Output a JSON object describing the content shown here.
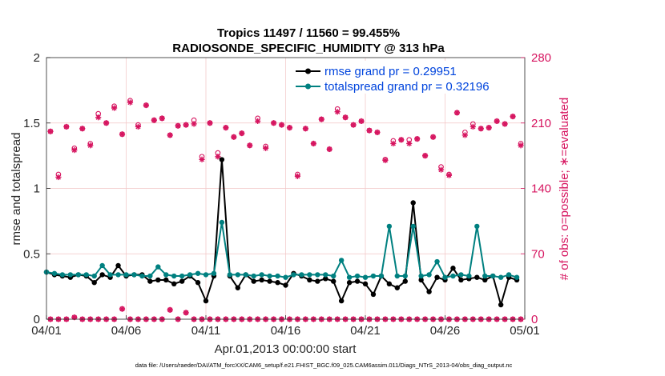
{
  "chart_data": {
    "type": "line",
    "title_line1": "Tropics 11497 / 11560 = 99.455%",
    "title_line2": "RADIOSONDE_SPECIFIC_HUMIDITY @ 313 hPa",
    "xlabel": "Apr.01,2013 00:00:00 start",
    "ylabel_left": "rmse and totalspread",
    "ylabel_right": "# of obs: o=possible; ∗=evaluated",
    "footer": "data file: /Users/raeder/DAI/ATM_forcXX/CAM6_setup/f.e21.FHIST_BGC.f09_025.CAM6assim.011/Diags_NTrS_2013-04/obs_diag_output.nc",
    "xlim": [
      0,
      30
    ],
    "ylim_left": [
      0,
      2
    ],
    "ylim_right": [
      0,
      280
    ],
    "x_tick_labels": [
      "04/01",
      "04/06",
      "04/11",
      "04/16",
      "04/21",
      "04/26",
      "05/01"
    ],
    "x_tick_values": [
      0,
      5,
      10,
      15,
      20,
      25,
      30
    ],
    "y_left_tick_labels": [
      "0",
      "0.5",
      "1",
      "1.5",
      "2"
    ],
    "y_left_tick_values": [
      0,
      0.5,
      1,
      1.5,
      2
    ],
    "y_right_tick_labels": [
      "0",
      "70",
      "140",
      "210",
      "280"
    ],
    "y_right_tick_values": [
      0,
      70,
      140,
      210,
      280
    ],
    "colors": {
      "rmse": "#000000",
      "spread": "#008080",
      "obs": "#d6145f",
      "rmse_legend_text": "#0044dd",
      "spread_legend_text": "#0044dd",
      "grid": "#f2c4c4"
    },
    "legend": [
      {
        "name": "rmse grand pr = 0.29951",
        "key": "rmse"
      },
      {
        "name": "totalspread grand pr = 0.32196",
        "key": "spread"
      }
    ],
    "series": [
      {
        "name": "rmse",
        "x": [
          0,
          0.5,
          1,
          1.5,
          2,
          2.5,
          3,
          3.5,
          4,
          4.5,
          5,
          5.5,
          6,
          6.5,
          7,
          7.5,
          8,
          8.5,
          9,
          9.5,
          10,
          10.5,
          11,
          11.5,
          12,
          12.5,
          13,
          13.5,
          14,
          14.5,
          15,
          15.5,
          16,
          16.5,
          17,
          17.5,
          18,
          18.5,
          19,
          19.5,
          20,
          20.5,
          21,
          21.5,
          22,
          22.5,
          23,
          23.5,
          24,
          24.5,
          25,
          25.5,
          26,
          26.5,
          27,
          27.5,
          28,
          28.5,
          29,
          29.5
        ],
        "values": [
          0.36,
          0.34,
          0.33,
          0.32,
          0.34,
          0.33,
          0.28,
          0.34,
          0.32,
          0.41,
          0.33,
          0.34,
          0.34,
          0.29,
          0.3,
          0.3,
          0.27,
          0.29,
          0.33,
          0.28,
          0.14,
          0.33,
          1.22,
          0.33,
          0.24,
          0.34,
          0.29,
          0.3,
          0.29,
          0.28,
          0.26,
          0.35,
          0.33,
          0.3,
          0.29,
          0.31,
          0.29,
          0.14,
          0.28,
          0.29,
          0.27,
          0.19,
          0.33,
          0.27,
          0.24,
          0.29,
          0.89,
          0.3,
          0.21,
          0.32,
          0.3,
          0.39,
          0.3,
          0.31,
          0.32,
          0.3,
          0.33,
          0.11,
          0.32,
          0.3
        ]
      },
      {
        "name": "totalspread",
        "x": [
          0,
          0.5,
          1,
          1.5,
          2,
          2.5,
          3,
          3.5,
          4,
          4.5,
          5,
          5.5,
          6,
          6.5,
          7,
          7.5,
          8,
          8.5,
          9,
          9.5,
          10,
          10.5,
          11,
          11.5,
          12,
          12.5,
          13,
          13.5,
          14,
          14.5,
          15,
          15.5,
          16,
          16.5,
          17,
          17.5,
          18,
          18.5,
          19,
          19.5,
          20,
          20.5,
          21,
          21.5,
          22,
          22.5,
          23,
          23.5,
          24,
          24.5,
          25,
          25.5,
          26,
          26.5,
          27,
          27.5,
          28,
          28.5,
          29,
          29.5
        ],
        "values": [
          0.36,
          0.35,
          0.34,
          0.34,
          0.34,
          0.34,
          0.33,
          0.41,
          0.34,
          0.34,
          0.34,
          0.34,
          0.33,
          0.33,
          0.4,
          0.34,
          0.33,
          0.33,
          0.34,
          0.35,
          0.34,
          0.35,
          0.74,
          0.34,
          0.34,
          0.34,
          0.33,
          0.34,
          0.33,
          0.33,
          0.32,
          0.34,
          0.34,
          0.34,
          0.34,
          0.34,
          0.33,
          0.45,
          0.32,
          0.33,
          0.32,
          0.33,
          0.33,
          0.71,
          0.33,
          0.33,
          0.71,
          0.33,
          0.34,
          0.44,
          0.32,
          0.33,
          0.34,
          0.33,
          0.71,
          0.33,
          0.33,
          0.32,
          0.34,
          0.32
        ]
      },
      {
        "name": "obs_possible",
        "x": [
          0.25,
          0.75,
          1.25,
          1.75,
          2.25,
          2.75,
          3.25,
          3.75,
          4.25,
          4.75,
          5.25,
          5.75,
          6.25,
          6.75,
          7.25,
          7.75,
          8.25,
          8.75,
          9.25,
          9.75,
          10.25,
          10.75,
          11.25,
          11.75,
          12.25,
          12.75,
          13.25,
          13.75,
          14.25,
          14.75,
          15.25,
          15.75,
          16.25,
          16.75,
          17.25,
          17.75,
          18.25,
          18.75,
          19.25,
          19.75,
          20.25,
          20.75,
          21.25,
          21.75,
          22.25,
          22.75,
          23.25,
          23.75,
          24.25,
          24.75,
          25.25,
          25.75,
          26.25,
          26.75,
          27.25,
          27.75,
          28.25,
          28.75,
          29.25,
          29.75
        ],
        "values": [
          201,
          155,
          206,
          183,
          204,
          188,
          220,
          210,
          228,
          198,
          234,
          208,
          229,
          213,
          215,
          197,
          207,
          208,
          213,
          174,
          210,
          178,
          205,
          195,
          199,
          186,
          215,
          185,
          210,
          208,
          205,
          155,
          204,
          188,
          214,
          182,
          225,
          216,
          208,
          212,
          202,
          200,
          171,
          191,
          192,
          192,
          193,
          175,
          195,
          163,
          155,
          221,
          200,
          209,
          204,
          205,
          212,
          209,
          217,
          188
        ]
      },
      {
        "name": "obs_evaluated",
        "x": [
          0.25,
          0.75,
          1.25,
          1.75,
          2.25,
          2.75,
          3.25,
          3.75,
          4.25,
          4.75,
          5.25,
          5.75,
          6.25,
          6.75,
          7.25,
          7.75,
          8.25,
          8.75,
          9.25,
          9.75,
          10.25,
          10.75,
          11.25,
          11.75,
          12.25,
          12.75,
          13.25,
          13.75,
          14.25,
          14.75,
          15.25,
          15.75,
          16.25,
          16.75,
          17.25,
          17.75,
          18.25,
          18.75,
          19.25,
          19.75,
          20.25,
          20.75,
          21.25,
          21.75,
          22.25,
          22.75,
          23.25,
          23.75,
          24.25,
          24.75,
          25.25,
          25.75,
          26.25,
          26.75,
          27.25,
          27.75,
          28.25,
          28.75,
          29.25,
          29.75
        ],
        "values": [
          201,
          152,
          206,
          181,
          204,
          186,
          216,
          210,
          226,
          198,
          232,
          206,
          229,
          213,
          215,
          197,
          207,
          208,
          209,
          171,
          210,
          174,
          205,
          195,
          199,
          186,
          212,
          183,
          210,
          208,
          205,
          153,
          204,
          188,
          214,
          182,
          222,
          216,
          208,
          212,
          202,
          200,
          170,
          188,
          192,
          188,
          193,
          175,
          195,
          160,
          154,
          221,
          197,
          206,
          204,
          205,
          212,
          209,
          217,
          186
        ]
      },
      {
        "name": "obs_bottom",
        "x": [
          0.25,
          0.75,
          1.25,
          1.75,
          2.25,
          2.75,
          3.25,
          3.75,
          4.25,
          4.75,
          5.25,
          5.75,
          6.25,
          6.75,
          7.25,
          7.75,
          8.25,
          8.75,
          9.25,
          9.75,
          10.25,
          10.75,
          11.25,
          11.75,
          12.25,
          12.75,
          13.25,
          13.75,
          14.25,
          14.75,
          15.25,
          15.75,
          16.25,
          16.75,
          17.25,
          17.75,
          18.25,
          18.75,
          19.25,
          19.75,
          20.25,
          20.75,
          21.25,
          21.75,
          22.25,
          22.75,
          23.25,
          23.75,
          24.25,
          24.75,
          25.25,
          25.75,
          26.25,
          26.75,
          27.25,
          27.75,
          28.25,
          28.75,
          29.25,
          29.75
        ],
        "values": [
          0,
          0,
          0,
          2,
          0,
          0,
          0,
          0,
          0,
          11,
          0,
          0,
          0,
          0,
          0,
          10,
          0,
          7,
          0,
          0,
          0,
          0,
          0,
          0,
          0,
          0,
          0,
          0,
          0,
          0,
          0,
          0,
          0,
          0,
          0,
          0,
          0,
          0,
          0,
          0,
          0,
          0,
          0,
          0,
          0,
          0,
          0,
          0,
          0,
          0,
          0,
          0,
          0,
          0,
          0,
          0,
          0,
          0,
          0,
          0
        ]
      }
    ]
  }
}
